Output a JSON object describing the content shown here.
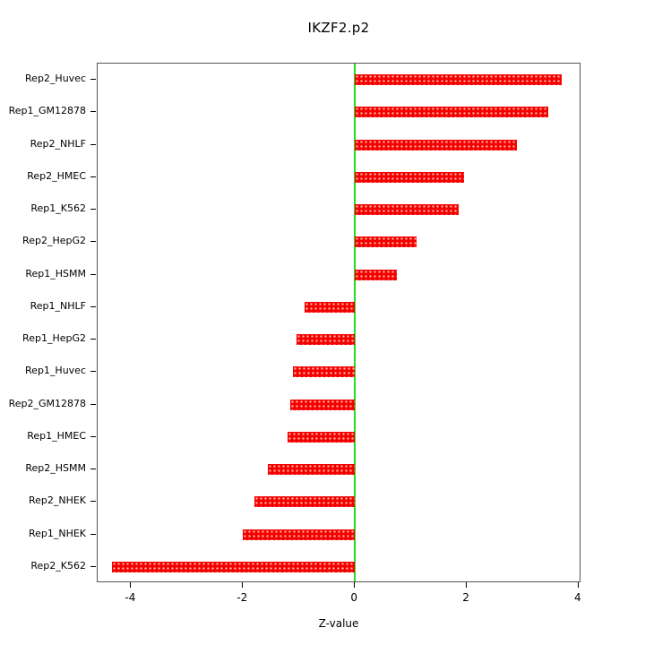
{
  "chart_data": {
    "type": "bar",
    "orientation": "horizontal",
    "title": "IKZF2.p2",
    "xlabel": "Z-value",
    "ylabel": "",
    "categories": [
      "Rep2_Huvec",
      "Rep1_GM12878",
      "Rep2_NHLF",
      "Rep2_HMEC",
      "Rep1_K562",
      "Rep2_HepG2",
      "Rep1_HSMM",
      "Rep1_NHLF",
      "Rep1_HepG2",
      "Rep1_Huvec",
      "Rep2_GM12878",
      "Rep1_HMEC",
      "Rep2_HSMM",
      "Rep2_NHEK",
      "Rep1_NHEK",
      "Rep2_K562"
    ],
    "values": [
      3.7,
      3.45,
      2.9,
      1.95,
      1.85,
      1.1,
      0.75,
      -0.9,
      -1.05,
      -1.1,
      -1.15,
      -1.2,
      -1.55,
      -1.8,
      -2.0,
      -4.35
    ],
    "xlim": [
      -4.6,
      4.05
    ],
    "xticks": [
      -4,
      -2,
      0,
      2,
      4
    ],
    "zero_line_x": 0,
    "grid": false,
    "legend": "none"
  },
  "colors": {
    "bar_fill": "#f40000",
    "bar_dot": "#ffb0a0",
    "zero_line": "#22dd22",
    "axis_text": "#000000"
  }
}
